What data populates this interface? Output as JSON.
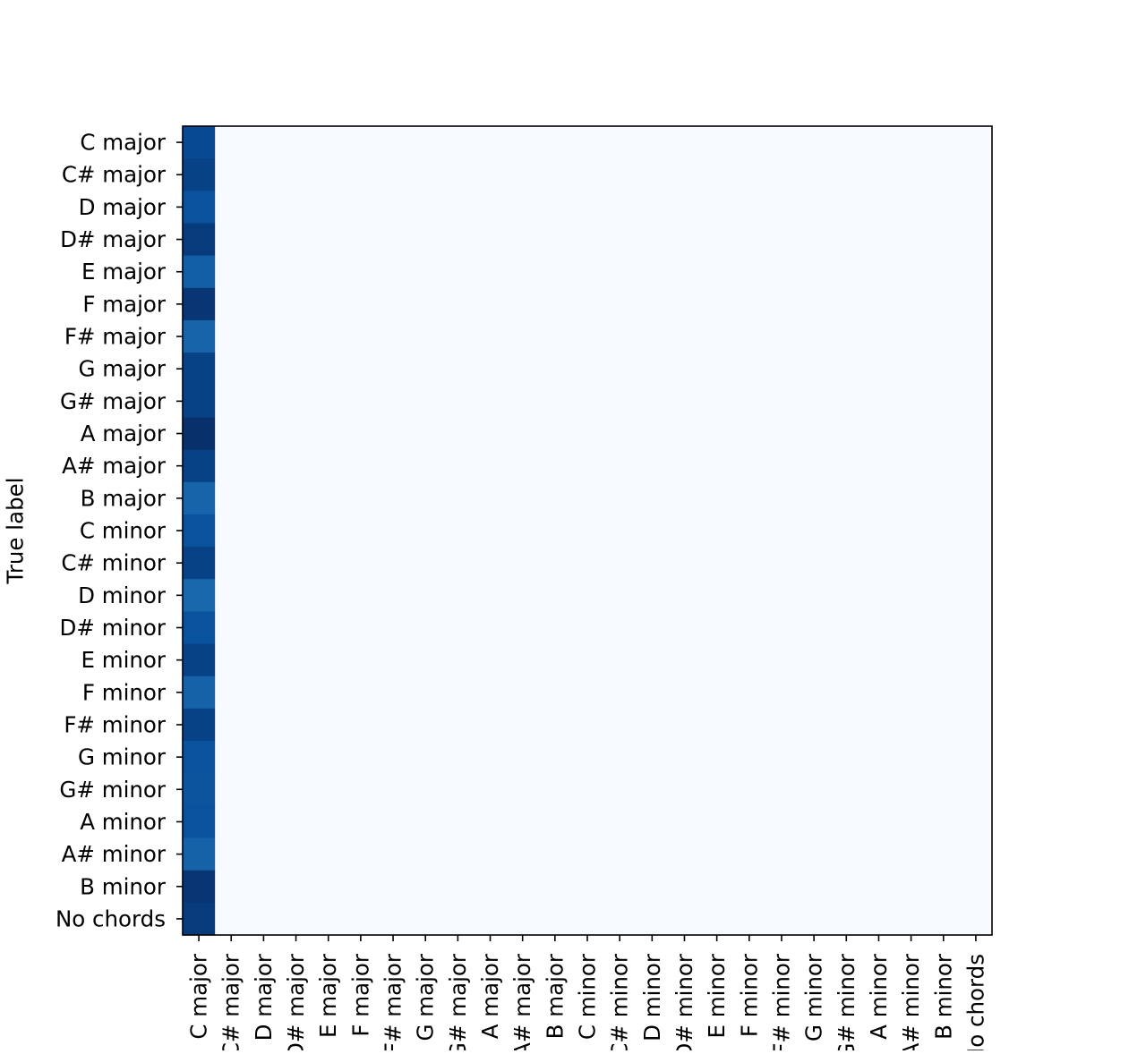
{
  "chart_data": {
    "type": "heatmap",
    "title": "",
    "xlabel": "",
    "ylabel": "True label",
    "y_categories": [
      "C major",
      "C# major",
      "D major",
      "D# major",
      "E major",
      "F major",
      "F# major",
      "G major",
      "G# major",
      "A major",
      "A# major",
      "B major",
      "C minor",
      "C# minor",
      "D minor",
      "D# minor",
      "E minor",
      "F minor",
      "F# minor",
      "G minor",
      "G# minor",
      "A minor",
      "A# minor",
      "B minor",
      "No chords"
    ],
    "x_categories": [
      "C major",
      "C# major",
      "D major",
      "D# major",
      "E major",
      "F major",
      "F# major",
      "G major",
      "G# major",
      "A major",
      "A# major",
      "B major",
      "C minor",
      "C# minor",
      "D minor",
      "D# minor",
      "E minor",
      "F minor",
      "F# minor",
      "G minor",
      "G# minor",
      "A minor",
      "A# minor",
      "B minor",
      "No chords"
    ],
    "colormap": "Blues",
    "colormap_stops": [
      "#f7fbff",
      "#deebf7",
      "#c6dbef",
      "#9ecae1",
      "#6baed6",
      "#4292c6",
      "#2171b5",
      "#08519c",
      "#08306b"
    ],
    "value_range": [
      0,
      1
    ],
    "predicted_column": "C major",
    "first_column_values": [
      0.9,
      0.93,
      0.87,
      0.96,
      0.82,
      0.98,
      0.8,
      0.93,
      0.93,
      1.0,
      0.93,
      0.8,
      0.87,
      0.93,
      0.79,
      0.87,
      0.93,
      0.81,
      0.93,
      0.87,
      0.86,
      0.87,
      0.81,
      0.98,
      0.96
    ],
    "other_columns_value": 0.0,
    "grid": false,
    "legend": "none"
  }
}
